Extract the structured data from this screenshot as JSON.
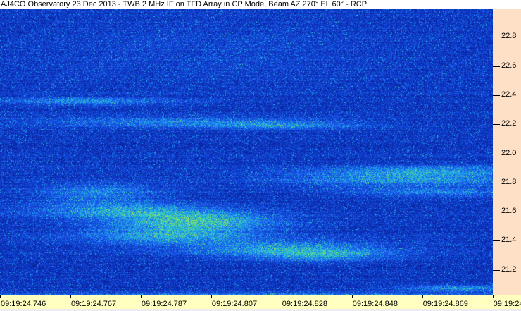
{
  "title": "AJ4CO Observatory 23 Dec 2013 - TWB 2 MHz IF on TFD Array in CP Mode, Beam AZ 270° EL 60° - RCP",
  "chart_data": {
    "type": "heatmap",
    "title": "AJ4CO Observatory 23 Dec 2013 - TWB 2 MHz IF on TFD Array in CP Mode, Beam AZ 270° EL 60° - RCP",
    "x_tick_labels": [
      "09:19:24.746",
      "09:19:24.767",
      "09:19:24.787",
      "09:19:24.807",
      "09:19:24.828",
      "09:19:24.848",
      "09:19:24.869",
      "09:19:24.889"
    ],
    "y_tick_labels": [
      "22.8",
      "22.6",
      "22.4",
      "22.2",
      "22.0",
      "21.8",
      "21.6",
      "21.4",
      "21.2"
    ],
    "y_ticks": [
      22.8,
      22.6,
      22.4,
      22.2,
      22.0,
      21.8,
      21.6,
      21.4,
      21.2
    ],
    "ylim": [
      21.02,
      22.98
    ],
    "y_axis_position": "right",
    "colormap": [
      "#06127a",
      "#0b2fb8",
      "#1a5cf0",
      "#20b8e8",
      "#60e070",
      "#e8e840"
    ],
    "colors": {
      "y_axis_bg": "#fde0c6",
      "x_axis_bg": "#ffffc0"
    }
  }
}
